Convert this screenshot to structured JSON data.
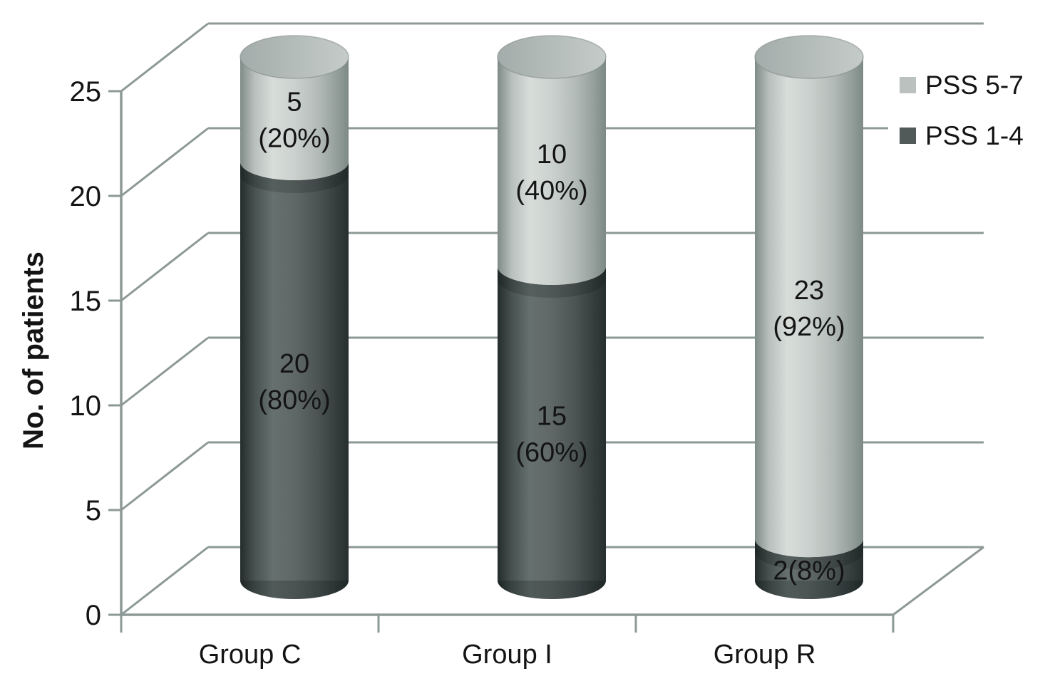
{
  "figure": {
    "background": "#ffffff",
    "frame_line_color": "#8d9996",
    "text_color": "#141414"
  },
  "chart_data": {
    "type": "bar",
    "subtype": "3d-stacked-cylinder",
    "title": "",
    "xlabel": "",
    "ylabel": "No. of patients",
    "ylim": [
      0,
      25
    ],
    "yticks": [
      "0",
      "5",
      "10",
      "15",
      "20",
      "25"
    ],
    "ytick_values": [
      0,
      5,
      10,
      15,
      20,
      25
    ],
    "grid": true,
    "categories": [
      "Group C",
      "Group I",
      "Group R"
    ],
    "series": [
      {
        "name": "PSS 1-4",
        "stack_position": "bottom",
        "color": "#515a59",
        "values": [
          20,
          15,
          2
        ],
        "percents": [
          "80%",
          "60%",
          "8%"
        ]
      },
      {
        "name": "PSS 5-7",
        "stack_position": "top",
        "color": "#bac1be",
        "values": [
          5,
          10,
          23
        ],
        "percents": [
          "20%",
          "40%",
          "92%"
        ]
      }
    ],
    "segment_labels": {
      "pss_1_4": [
        [
          "20",
          "(80%)"
        ],
        [
          "15",
          "(60%)"
        ],
        [
          "2(8%)"
        ]
      ],
      "pss_5_7": [
        [
          "5",
          "(20%)"
        ],
        [
          "10",
          "(40%)"
        ],
        [
          "23",
          "(92%)"
        ]
      ]
    },
    "legend": {
      "position": "top-right",
      "entries": [
        {
          "label": "PSS 5-7",
          "color": "#bac1be"
        },
        {
          "label": "PSS 1-4",
          "color": "#515a59"
        }
      ]
    }
  }
}
